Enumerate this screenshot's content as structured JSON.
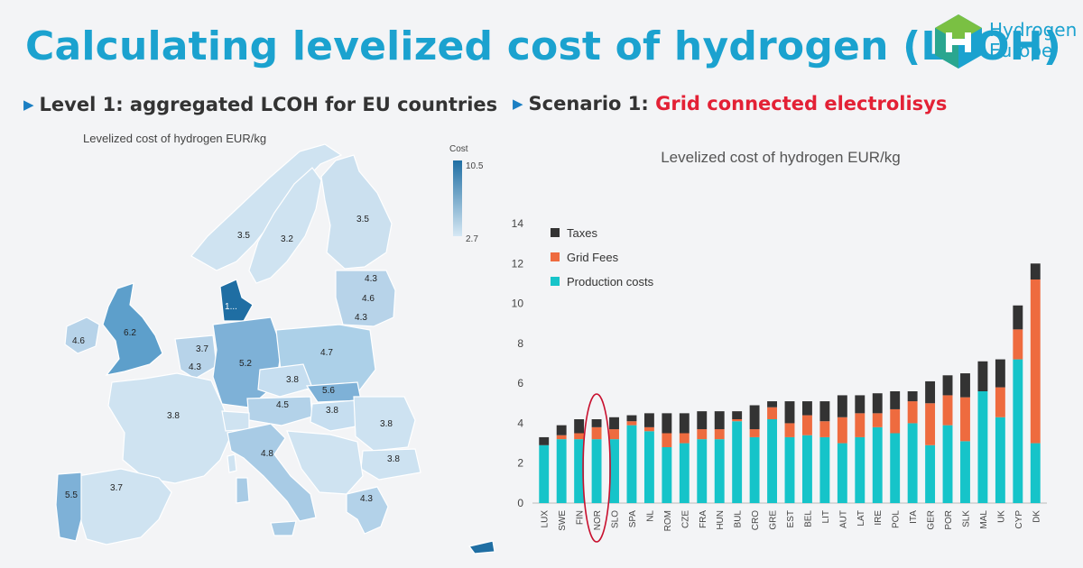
{
  "title": "Calculating levelized cost of hydrogen (LCOH)",
  "logo": {
    "line1": "Hydrogen",
    "line2": "Europe",
    "colors": [
      "#1ba2cf",
      "#7ac043",
      "#2aa68f"
    ]
  },
  "left_heading": "Level 1: aggregated LCOH for EU countries",
  "right_heading": {
    "prefix": "Scenario 1: ",
    "highlight": "Grid connected electrolisys"
  },
  "colors": {
    "title": "#1ba2cf",
    "highlight": "#e32135",
    "taxes": "#333333",
    "grid_fees": "#ee6b3f",
    "production": "#16c4c9",
    "circle": "#c8102e"
  },
  "map": {
    "caption": "Levelized cost of hydrogen EUR/kg",
    "legend_title": "Cost",
    "legend_max": "10.5",
    "legend_min": "2.7",
    "labels": [
      "3.5",
      "3.2",
      "3.5",
      "4.3",
      "4.6",
      "4.3",
      "1...",
      "4.6",
      "6.2",
      "3.7",
      "4.3",
      "5.2",
      "4.7",
      "3.8",
      "5.6",
      "4.5",
      "3.8",
      "3.8",
      "3.8",
      "4.8",
      "3.8",
      "5.5",
      "3.7",
      "4.3"
    ]
  },
  "chart_data": {
    "type": "bar",
    "stacked": true,
    "title": "Levelized cost of hydrogen EUR/kg",
    "categories": [
      "LUX",
      "SWE",
      "FIN",
      "NOR",
      "SLO",
      "SPA",
      "NL",
      "ROM",
      "CZE",
      "FRA",
      "HUN",
      "BUL",
      "CRO",
      "GRE",
      "EST",
      "BEL",
      "LIT",
      "AUT",
      "LAT",
      "IRE",
      "POL",
      "ITA",
      "GER",
      "POR",
      "SLK",
      "MAL",
      "UK",
      "CYP",
      "DK"
    ],
    "series": [
      {
        "name": "Production costs",
        "values": [
          2.9,
          3.2,
          3.2,
          3.2,
          3.2,
          3.9,
          3.6,
          2.8,
          3.0,
          3.2,
          3.2,
          4.1,
          3.3,
          4.2,
          3.3,
          3.4,
          3.3,
          3.0,
          3.3,
          3.8,
          3.5,
          4.0,
          2.9,
          3.9,
          3.1,
          5.6,
          4.3,
          7.2,
          3.0
        ]
      },
      {
        "name": "Grid Fees",
        "values": [
          0.0,
          0.2,
          0.3,
          0.6,
          0.5,
          0.2,
          0.2,
          0.7,
          0.5,
          0.5,
          0.5,
          0.1,
          0.4,
          0.6,
          0.7,
          1.0,
          0.8,
          1.3,
          1.2,
          0.7,
          1.2,
          1.1,
          2.1,
          1.5,
          2.2,
          0.0,
          1.5,
          1.5,
          8.2
        ]
      },
      {
        "name": "Taxes",
        "values": [
          0.4,
          0.5,
          0.7,
          0.4,
          0.6,
          0.3,
          0.7,
          1.0,
          1.0,
          0.9,
          0.9,
          0.4,
          1.2,
          0.3,
          1.1,
          0.7,
          1.0,
          1.1,
          0.9,
          1.0,
          0.9,
          0.5,
          1.1,
          1.0,
          1.2,
          1.5,
          1.4,
          1.2,
          0.8
        ]
      }
    ],
    "legend": [
      "Taxes",
      "Grid Fees",
      "Production costs"
    ],
    "legend_position": "top-left",
    "ylim": [
      0,
      14
    ],
    "yticks": [
      "0",
      "2",
      "4",
      "6",
      "8",
      "10",
      "12",
      "14"
    ],
    "highlighted_category": "NOR"
  }
}
